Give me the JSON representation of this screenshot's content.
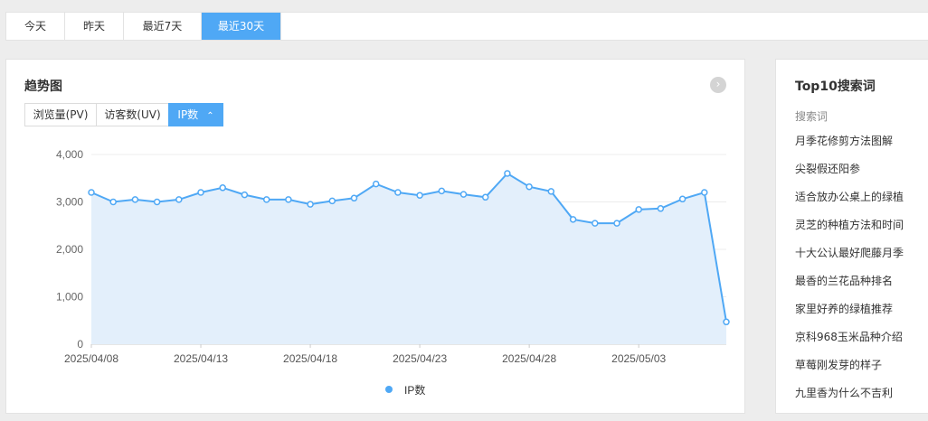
{
  "date_tabs": [
    "今天",
    "昨天",
    "最近7天",
    "最近30天"
  ],
  "active_date_tab": 3,
  "trend": {
    "title": "趋势图",
    "next_icon": "chevron-right-icon",
    "metric_tabs": [
      "浏览量(PV)",
      "访客数(UV)",
      "IP数"
    ],
    "active_metric": 2,
    "active_metric_icon": "chevron-up-icon"
  },
  "chart_data": {
    "type": "area",
    "series": [
      {
        "name": "IP数",
        "color": "#4fa8f5",
        "fill": "#e3effb",
        "values": [
          3200,
          3000,
          3050,
          3000,
          3050,
          3200,
          3300,
          3150,
          3050,
          3050,
          2950,
          3020,
          3080,
          3380,
          3200,
          3140,
          3230,
          3160,
          3100,
          3600,
          3320,
          3220,
          2630,
          2550,
          2550,
          2840,
          2860,
          3060,
          3200,
          470
        ]
      }
    ],
    "x_tick_labels": [
      "2025/04/08",
      "2025/04/13",
      "2025/04/18",
      "2025/04/23",
      "2025/04/28",
      "2025/05/03"
    ],
    "x_tick_indices": [
      0,
      5,
      10,
      15,
      20,
      25
    ],
    "y_tick_labels": [
      "0",
      "1,000",
      "2,000",
      "3,000",
      "4,000"
    ],
    "y_ticks": [
      0,
      1000,
      2000,
      3000,
      4000
    ],
    "ylim": [
      0,
      4000
    ],
    "grid": true,
    "legend": "bottom-center"
  },
  "top10": {
    "title": "Top10搜索词",
    "header": "搜索词",
    "keywords": [
      "月季花修剪方法图解",
      "尖裂假还阳参",
      "适合放办公桌上的绿植",
      "灵芝的种植方法和时间",
      "十大公认最好爬藤月季",
      "最香的兰花品种排名",
      "家里好养的绿植推荐",
      "京科968玉米品种介绍",
      "草莓刚发芽的样子",
      "九里香为什么不吉利"
    ]
  }
}
